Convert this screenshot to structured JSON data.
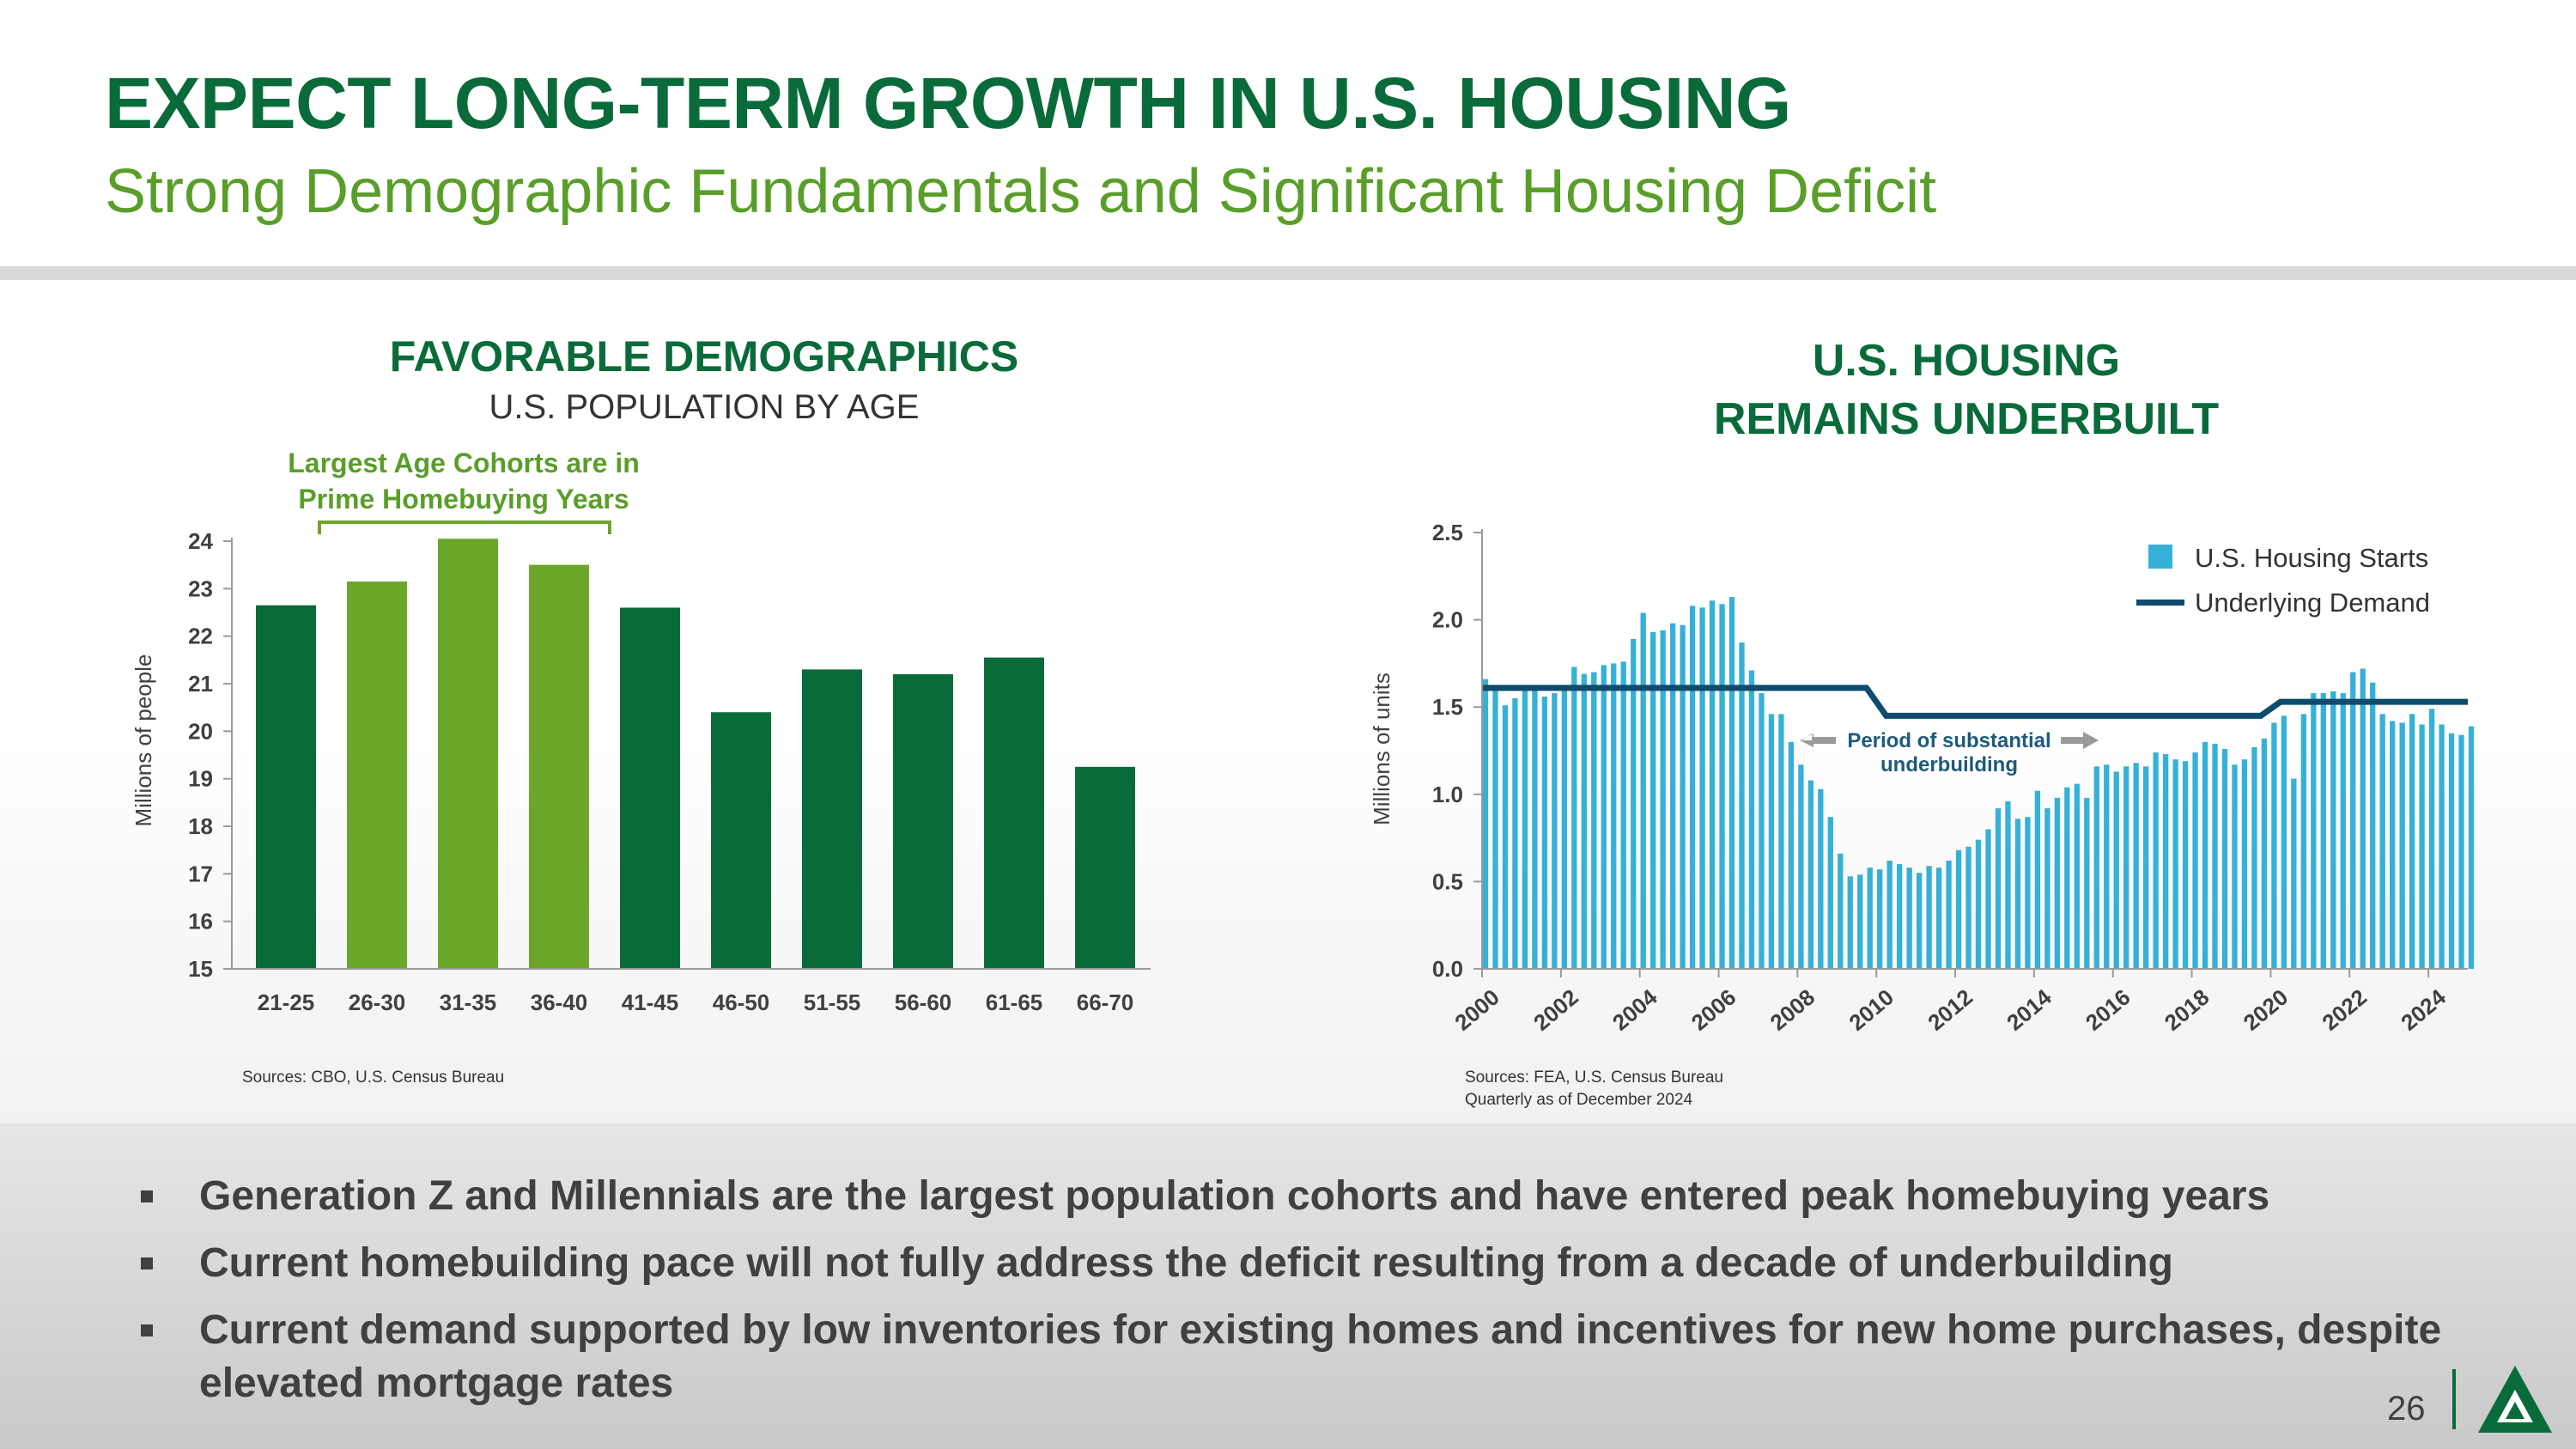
{
  "header": {
    "title": "EXPECT LONG-TERM GROWTH IN U.S. HOUSING",
    "subtitle": "Strong Demographic Fundamentals and Significant Housing Deficit"
  },
  "left_panel": {
    "title": "FAVORABLE DEMOGRAPHICS",
    "subtitle": "U.S. POPULATION BY AGE",
    "cohort_note_line1": "Largest Age Cohorts are in",
    "cohort_note_line2": "Prime Homebuying Years",
    "source": "Sources: CBO, U.S. Census Bureau"
  },
  "right_panel": {
    "title_line1": "U.S. HOUSING",
    "title_line2": "REMAINS UNDERBUILT",
    "annotation_line1": "Period of substantial",
    "annotation_line2": "underbuilding",
    "source_line1": "Sources: FEA, U.S. Census Bureau",
    "source_line2": "Quarterly as of December 2024"
  },
  "bullets": [
    "Generation Z and Millennials are the largest population cohorts and have entered peak homebuying years",
    "Current homebuilding pace will not fully address the deficit resulting from a decade of underbuilding",
    "Current demand supported by low inventories for existing homes and incentives for new home purchases, despite elevated mortgage rates"
  ],
  "footer": {
    "page_number": "26"
  },
  "colors": {
    "dark_green": "#0a6b3a",
    "light_green": "#6aa628",
    "starts_blue": "#36b1d6",
    "demand_navy": "#0e4b6d",
    "text_gray": "#404040"
  },
  "chart_data": [
    {
      "type": "bar",
      "title": "",
      "xlabel": "",
      "ylabel": "Millions of people",
      "ylim": [
        15,
        24
      ],
      "yticks": [
        "15",
        "16",
        "17",
        "18",
        "19",
        "20",
        "21",
        "22",
        "23",
        "24"
      ],
      "categories": [
        "21-25",
        "26-30",
        "31-35",
        "36-40",
        "41-45",
        "46-50",
        "51-55",
        "56-60",
        "61-65",
        "66-70"
      ],
      "values": [
        22.65,
        23.15,
        24.05,
        23.5,
        22.6,
        20.4,
        21.3,
        21.2,
        21.55,
        19.25
      ],
      "highlighted": [
        false,
        true,
        true,
        true,
        false,
        false,
        false,
        false,
        false,
        false
      ],
      "grid": false
    },
    {
      "type": "bar",
      "title": "",
      "xlabel": "",
      "ylabel": "Millions of units",
      "ylim": [
        0,
        2.5
      ],
      "yticks": [
        "0.0",
        "0.5",
        "1.0",
        "1.5",
        "2.0",
        "2.5"
      ],
      "xticks": [
        "2000",
        "2002",
        "2004",
        "2006",
        "2008",
        "2010",
        "2012",
        "2014",
        "2016",
        "2018",
        "2020",
        "2022",
        "2024"
      ],
      "x_start_year": 2000,
      "periods_per_year": 4,
      "legend_position": "top-right",
      "grid": false,
      "series": [
        {
          "name": "U.S. Housing Starts",
          "type": "bar",
          "values": [
            1.66,
            1.6,
            1.51,
            1.55,
            1.61,
            1.62,
            1.56,
            1.58,
            1.6,
            1.73,
            1.69,
            1.7,
            1.74,
            1.75,
            1.76,
            1.89,
            2.04,
            1.93,
            1.94,
            1.98,
            1.97,
            2.08,
            2.07,
            2.11,
            2.09,
            2.13,
            1.87,
            1.71,
            1.58,
            1.46,
            1.46,
            1.3,
            1.17,
            1.08,
            1.03,
            0.87,
            0.66,
            0.53,
            0.54,
            0.58,
            0.57,
            0.62,
            0.6,
            0.58,
            0.55,
            0.59,
            0.58,
            0.62,
            0.68,
            0.7,
            0.74,
            0.8,
            0.92,
            0.96,
            0.86,
            0.87,
            1.02,
            0.92,
            0.98,
            1.04,
            1.06,
            0.98,
            1.16,
            1.17,
            1.13,
            1.16,
            1.18,
            1.16,
            1.24,
            1.23,
            1.2,
            1.19,
            1.24,
            1.3,
            1.29,
            1.26,
            1.17,
            1.2,
            1.27,
            1.32,
            1.41,
            1.45,
            1.09,
            1.46,
            1.58,
            1.58,
            1.59,
            1.58,
            1.7,
            1.72,
            1.64,
            1.46,
            1.42,
            1.41,
            1.46,
            1.4,
            1.49,
            1.4,
            1.35,
            1.34,
            1.39
          ]
        },
        {
          "name": "Underlying Demand",
          "type": "line",
          "points": [
            [
              2000,
              1.61
            ],
            [
              2009.75,
              1.61
            ],
            [
              2010.25,
              1.45
            ],
            [
              2019.75,
              1.45
            ],
            [
              2020.25,
              1.53
            ],
            [
              2025,
              1.53
            ]
          ]
        }
      ]
    }
  ]
}
